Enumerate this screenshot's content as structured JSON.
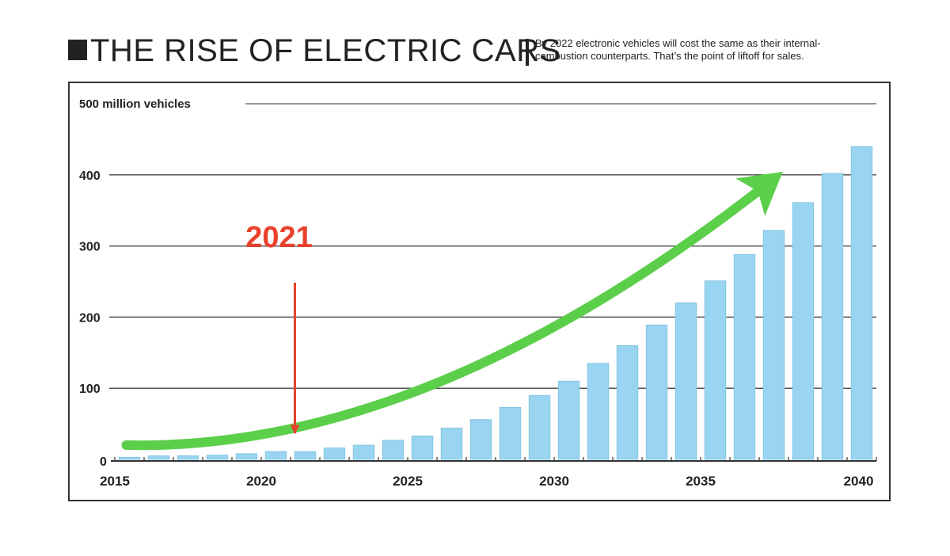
{
  "header": {
    "title": "THE RISE OF ELECTRIC CARS",
    "subtitle_line1": "By 2022 electronic vehicles will cost the same as their internal-",
    "subtitle_line2": "combustion counterparts. That’s the point of liftoff for sales."
  },
  "chart_data": {
    "type": "bar",
    "title": "THE RISE OF ELECTRIC CARS",
    "subtitle": "By 2022 electronic vehicles will cost the same as their internal-combustion counterparts. That’s the point of liftoff for sales.",
    "x": [
      2015,
      2016,
      2017,
      2018,
      2019,
      2020,
      2021,
      2022,
      2023,
      2024,
      2025,
      2026,
      2027,
      2028,
      2029,
      2030,
      2031,
      2032,
      2033,
      2034,
      2035,
      2036,
      2037,
      2038,
      2039,
      2040
    ],
    "values": [
      3,
      5,
      5,
      6,
      8,
      11,
      11,
      16,
      20,
      27,
      33,
      44,
      56,
      73,
      90,
      110,
      135,
      160,
      189,
      220,
      251,
      288,
      322,
      361,
      402,
      440
    ],
    "x_ticks": [
      2015,
      2020,
      2025,
      2030,
      2035,
      2040
    ],
    "y_ticks": [
      0,
      100,
      200,
      300,
      400,
      500
    ],
    "y_top_label": "500 million vehicles",
    "ylim": [
      0,
      500
    ],
    "xlabel": "",
    "ylabel": "",
    "grid": true,
    "colors": {
      "bar": "#99d5f1",
      "bar_edge": "#7cc0e0",
      "trend_arrow": "#5ccf4a",
      "annotation": "#e8412c",
      "grid": "#555555"
    },
    "annotations": [
      {
        "text": "2021",
        "x": 2021,
        "target_value": 30,
        "color": "#e8412c"
      },
      {
        "text": "",
        "type": "trend-arrow",
        "from": [
          2015,
          20
        ],
        "to": [
          2037.5,
          420
        ],
        "color": "#5ccf4a"
      }
    ]
  }
}
